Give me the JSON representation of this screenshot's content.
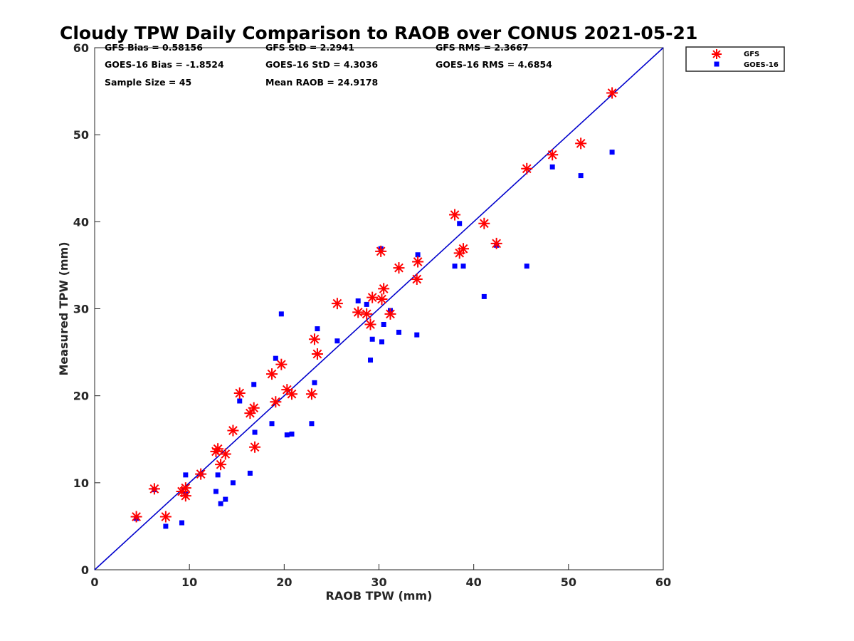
{
  "chart_data": {
    "type": "scatter",
    "title": "Cloudy TPW Daily Comparison to RAOB over CONUS 2021-05-21",
    "xlabel": "RAOB TPW (mm)",
    "ylabel": "Measured TPW (mm)",
    "xlim": [
      0,
      60
    ],
    "ylim": [
      0,
      60
    ],
    "xticks": [
      "0",
      "10",
      "20",
      "30",
      "40",
      "50",
      "60"
    ],
    "yticks": [
      "0",
      "10",
      "20",
      "30",
      "40",
      "50",
      "60"
    ],
    "grid": false,
    "legend_position": "top-right, outside plot",
    "reference_line": {
      "from": [
        0,
        0
      ],
      "to": [
        60,
        60
      ],
      "color": "#0000cc"
    },
    "stats": [
      [
        "GFS Bias = 0.58156",
        "GFS StD = 2.2941",
        "GFS RMS = 2.3667"
      ],
      [
        "GOES-16 Bias = -1.8524",
        "GOES-16 StD = 4.3036",
        "GOES-16 RMS = 4.6854"
      ],
      [
        "Sample Size = 45",
        "Mean RAOB = 24.9178",
        ""
      ]
    ],
    "series": [
      {
        "name": "GFS",
        "marker": "asterisk",
        "color": "#ff0000",
        "points": [
          [
            4.4,
            6.1
          ],
          [
            6.3,
            9.3
          ],
          [
            7.5,
            6.1
          ],
          [
            9.2,
            9.0
          ],
          [
            9.6,
            8.5
          ],
          [
            9.6,
            9.4
          ],
          [
            11.2,
            11.0
          ],
          [
            12.8,
            13.6
          ],
          [
            13.0,
            13.9
          ],
          [
            13.3,
            12.1
          ],
          [
            13.8,
            13.3
          ],
          [
            14.6,
            16.0
          ],
          [
            15.3,
            20.3
          ],
          [
            16.4,
            18.0
          ],
          [
            16.8,
            18.6
          ],
          [
            16.9,
            14.1
          ],
          [
            18.7,
            22.5
          ],
          [
            19.1,
            19.3
          ],
          [
            19.7,
            23.6
          ],
          [
            20.3,
            20.7
          ],
          [
            20.8,
            20.2
          ],
          [
            22.9,
            20.2
          ],
          [
            23.2,
            26.5
          ],
          [
            23.5,
            24.8
          ],
          [
            25.6,
            30.6
          ],
          [
            27.8,
            29.6
          ],
          [
            28.7,
            29.4
          ],
          [
            29.1,
            28.2
          ],
          [
            29.3,
            31.3
          ],
          [
            30.2,
            36.6
          ],
          [
            30.3,
            31.1
          ],
          [
            30.5,
            32.3
          ],
          [
            31.2,
            29.4
          ],
          [
            32.1,
            34.7
          ],
          [
            34.0,
            33.4
          ],
          [
            34.1,
            35.4
          ],
          [
            38.0,
            40.8
          ],
          [
            38.5,
            36.4
          ],
          [
            38.9,
            36.9
          ],
          [
            41.1,
            39.8
          ],
          [
            42.4,
            37.5
          ],
          [
            45.6,
            46.1
          ],
          [
            48.3,
            47.7
          ],
          [
            51.3,
            49.0
          ],
          [
            54.6,
            54.8
          ]
        ]
      },
      {
        "name": "GOES-16",
        "marker": "square",
        "color": "#0000ff",
        "points": [
          [
            4.4,
            5.9
          ],
          [
            6.3,
            9.2
          ],
          [
            7.5,
            5.0
          ],
          [
            9.2,
            5.4
          ],
          [
            9.6,
            8.7
          ],
          [
            9.6,
            10.9
          ],
          [
            11.2,
            11.0
          ],
          [
            12.8,
            9.0
          ],
          [
            13.0,
            10.9
          ],
          [
            13.3,
            7.6
          ],
          [
            13.8,
            8.1
          ],
          [
            14.6,
            10.0
          ],
          [
            15.3,
            19.4
          ],
          [
            16.4,
            11.1
          ],
          [
            16.8,
            21.3
          ],
          [
            16.9,
            15.8
          ],
          [
            18.7,
            16.8
          ],
          [
            19.1,
            24.3
          ],
          [
            19.7,
            29.4
          ],
          [
            20.3,
            15.5
          ],
          [
            20.8,
            15.6
          ],
          [
            22.9,
            16.8
          ],
          [
            23.2,
            21.5
          ],
          [
            23.5,
            27.7
          ],
          [
            25.6,
            26.3
          ],
          [
            27.8,
            30.9
          ],
          [
            28.7,
            30.5
          ],
          [
            29.1,
            24.1
          ],
          [
            29.3,
            26.5
          ],
          [
            30.2,
            36.9
          ],
          [
            30.3,
            26.2
          ],
          [
            30.5,
            28.2
          ],
          [
            31.2,
            29.8
          ],
          [
            32.1,
            27.3
          ],
          [
            34.0,
            27.0
          ],
          [
            34.1,
            36.2
          ],
          [
            38.0,
            34.9
          ],
          [
            38.5,
            39.8
          ],
          [
            38.9,
            34.9
          ],
          [
            41.1,
            31.4
          ],
          [
            42.4,
            37.3
          ],
          [
            45.6,
            34.9
          ],
          [
            48.3,
            46.3
          ],
          [
            51.3,
            45.3
          ],
          [
            54.6,
            48.0
          ]
        ]
      }
    ]
  }
}
